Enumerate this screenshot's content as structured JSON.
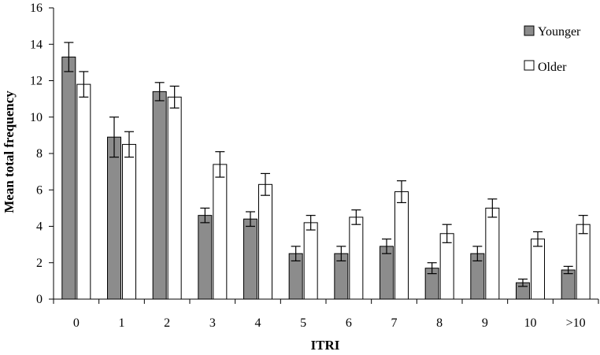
{
  "chart_data": {
    "type": "bar",
    "title": "",
    "xlabel": "ITRI",
    "ylabel": "Mean total frequency",
    "ylim": [
      0,
      16
    ],
    "yticks": [
      "0",
      "2",
      "4",
      "6",
      "8",
      "10",
      "12",
      "14",
      "16"
    ],
    "categories": [
      "0",
      "1",
      "2",
      "3",
      "4",
      "5",
      "6",
      "7",
      "8",
      "9",
      "10",
      ">10"
    ],
    "grid": false,
    "legend_position": "top-right",
    "series": [
      {
        "name": "Younger",
        "color": "#8c8c8c",
        "values": [
          13.3,
          8.9,
          11.4,
          4.6,
          4.4,
          2.5,
          2.5,
          2.9,
          1.7,
          2.5,
          0.9,
          1.6
        ],
        "error": [
          0.8,
          1.1,
          0.5,
          0.4,
          0.4,
          0.4,
          0.4,
          0.4,
          0.3,
          0.4,
          0.2,
          0.2
        ]
      },
      {
        "name": "Older",
        "color": "#ffffff",
        "values": [
          11.8,
          8.5,
          11.1,
          7.4,
          6.3,
          4.2,
          4.5,
          5.9,
          3.6,
          5.0,
          3.3,
          4.1
        ],
        "error": [
          0.7,
          0.7,
          0.6,
          0.7,
          0.6,
          0.4,
          0.4,
          0.6,
          0.5,
          0.5,
          0.4,
          0.5
        ]
      }
    ]
  }
}
